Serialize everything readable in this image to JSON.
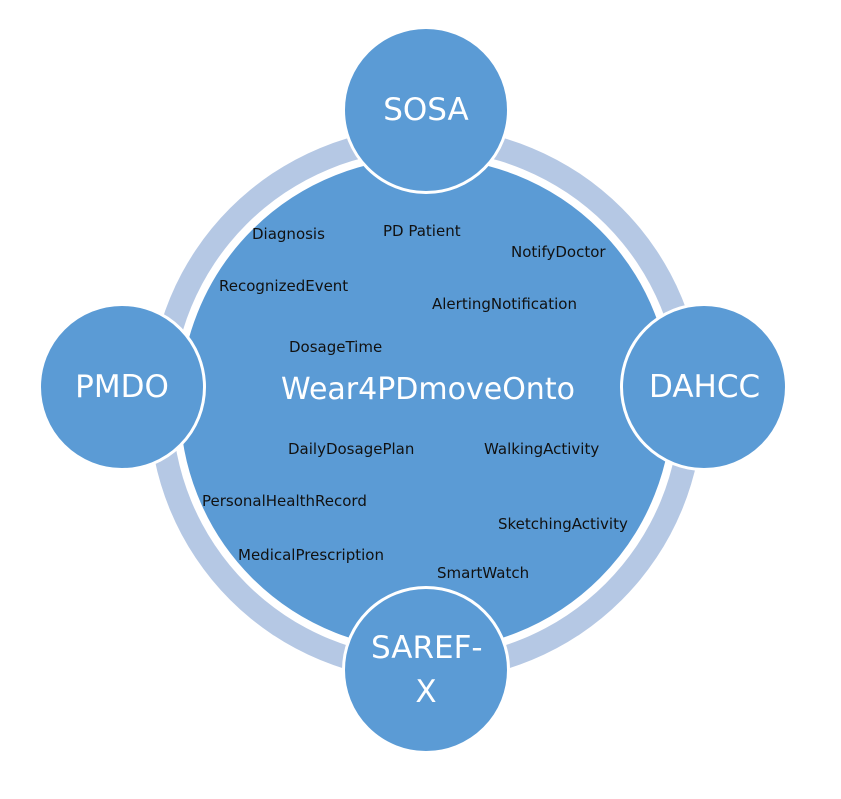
{
  "diagram": {
    "center_label": "Wear4PDmoveOnto",
    "nodes": {
      "top": "SOSA",
      "left": "PMDO",
      "right": "DAHCC",
      "bottom": "SAREF-\nX"
    },
    "concepts": [
      "Diagnosis",
      "PD Patient",
      "NotifyDoctor",
      "RecognizedEvent",
      "AlertingNotification",
      "DosageTime",
      "DailyDosagePlan",
      "WalkingActivity",
      "PersonalHealthRecord",
      "SketchingActivity",
      "MedicalPrescription",
      "SmartWatch"
    ]
  },
  "colors": {
    "node_fill": "#5b9bd5",
    "ring": "#b5c8e4",
    "node_text": "#ffffff",
    "concept_text": "#111111"
  }
}
